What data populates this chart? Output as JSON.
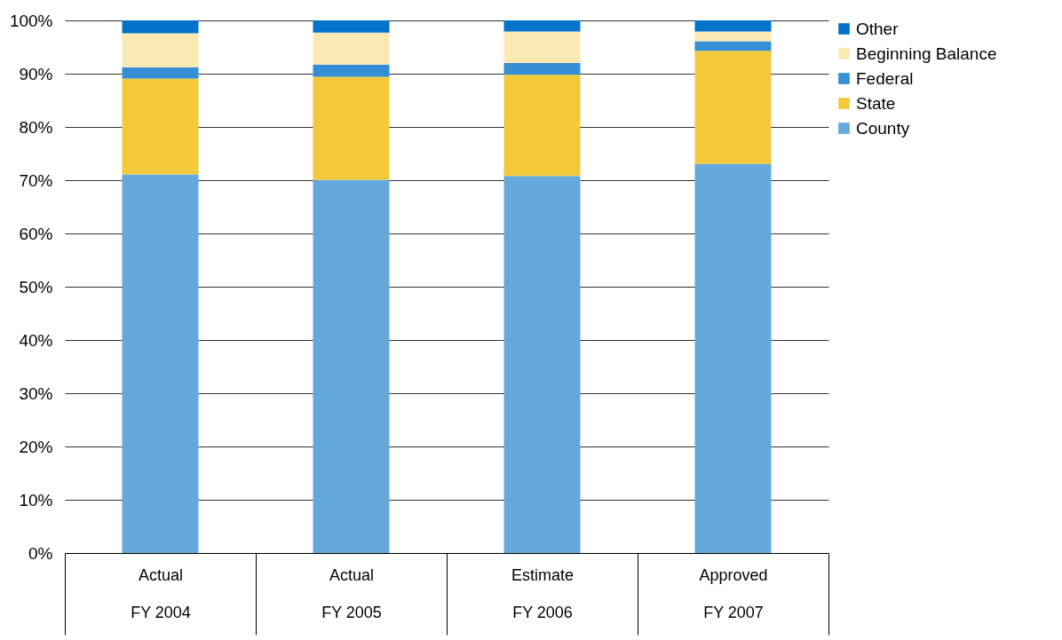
{
  "chart_data": {
    "type": "bar",
    "stacked": true,
    "categories": [
      "Actual\nFY 2004",
      "Actual\nFY 2005",
      "Estimate\nFY 2006",
      "Approved\nFY 2007"
    ],
    "series": [
      {
        "name": "County",
        "color": "#65a9dc",
        "values": [
          71.1,
          70.1,
          70.8,
          73.1
        ]
      },
      {
        "name": "State",
        "color": "#f3c939",
        "values": [
          18.0,
          19.3,
          19.0,
          21.2
        ]
      },
      {
        "name": "Federal",
        "color": "#348fd4",
        "values": [
          2.1,
          2.3,
          2.2,
          1.8
        ]
      },
      {
        "name": "Beginning Balance",
        "color": "#fbe9b4",
        "values": [
          6.4,
          6.0,
          5.9,
          1.8
        ]
      },
      {
        "name": "Other",
        "color": "#0373c9",
        "values": [
          2.4,
          2.3,
          2.1,
          2.1
        ]
      }
    ],
    "ylim": [
      0,
      100
    ],
    "yticks": [
      {
        "value": 0,
        "label": "0%"
      },
      {
        "value": 10,
        "label": "10%"
      },
      {
        "value": 20,
        "label": "20%"
      },
      {
        "value": 30,
        "label": "30%"
      },
      {
        "value": 40,
        "label": "40%"
      },
      {
        "value": 50,
        "label": "50%"
      },
      {
        "value": 60,
        "label": "60%"
      },
      {
        "value": 70,
        "label": "70%"
      },
      {
        "value": 80,
        "label": "80%"
      },
      {
        "value": 90,
        "label": "90%"
      },
      {
        "value": 100,
        "label": "100%"
      }
    ],
    "grid": "y",
    "legend": "right"
  }
}
